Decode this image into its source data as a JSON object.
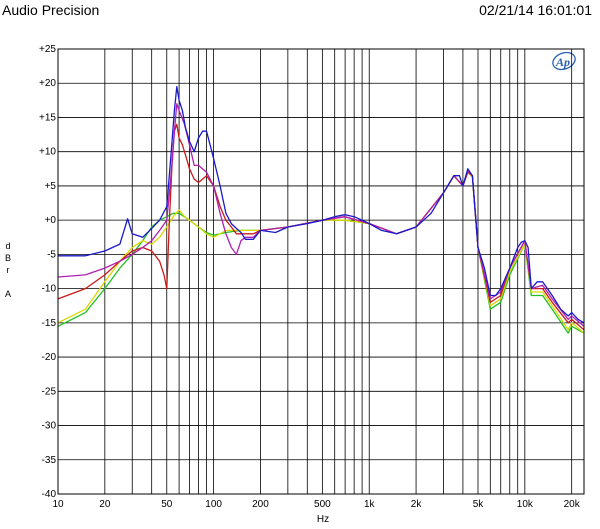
{
  "header": {
    "title": "Audio Precision",
    "timestamp": "02/21/14 16:01:01"
  },
  "logo": {
    "text": "Ap"
  },
  "chart_data": {
    "type": "line",
    "x_scale": "log",
    "y_scale": "linear",
    "xlim": [
      10,
      24000
    ],
    "ylim": [
      -40,
      25
    ],
    "grid": true,
    "legend": "none",
    "xlabel": "Hz",
    "ylabel": [
      "d",
      "B",
      "r",
      "",
      "A"
    ],
    "y_ticks": [
      {
        "v": 25,
        "label": "+25"
      },
      {
        "v": 20,
        "label": "+20"
      },
      {
        "v": 15,
        "label": "+15"
      },
      {
        "v": 10,
        "label": "+10"
      },
      {
        "v": 5,
        "label": "+5"
      },
      {
        "v": 0,
        "label": "+0"
      },
      {
        "v": -5,
        "label": "-5"
      },
      {
        "v": -10,
        "label": "-10"
      },
      {
        "v": -15,
        "label": "-15"
      },
      {
        "v": -20,
        "label": "-20"
      },
      {
        "v": -25,
        "label": "-25"
      },
      {
        "v": -30,
        "label": "-30"
      },
      {
        "v": -35,
        "label": "-35"
      },
      {
        "v": -40,
        "label": "-40"
      }
    ],
    "x_ticks": [
      {
        "v": 10,
        "label": "10"
      },
      {
        "v": 20,
        "label": "20"
      },
      {
        "v": 50,
        "label": "50"
      },
      {
        "v": 100,
        "label": "100"
      },
      {
        "v": 200,
        "label": "200"
      },
      {
        "v": 500,
        "label": "500"
      },
      {
        "v": 1000,
        "label": "1k"
      },
      {
        "v": 2000,
        "label": "2k"
      },
      {
        "v": 5000,
        "label": "5k"
      },
      {
        "v": 10000,
        "label": "10k"
      },
      {
        "v": 20000,
        "label": "20k"
      }
    ],
    "series": [
      {
        "color": "#1a1acc",
        "points": [
          [
            10,
            -5.2
          ],
          [
            15,
            -5.2
          ],
          [
            20,
            -4.5
          ],
          [
            25,
            -3.5
          ],
          [
            28,
            0.2
          ],
          [
            30,
            -2
          ],
          [
            35,
            -2.5
          ],
          [
            40,
            -1.2
          ],
          [
            45,
            0
          ],
          [
            50,
            2
          ],
          [
            53,
            9
          ],
          [
            56,
            16
          ],
          [
            58,
            19.5
          ],
          [
            60,
            17.5
          ],
          [
            63,
            16
          ],
          [
            66,
            13.5
          ],
          [
            70,
            11.5
          ],
          [
            75,
            10
          ],
          [
            80,
            12
          ],
          [
            85,
            13
          ],
          [
            90,
            13
          ],
          [
            95,
            11
          ],
          [
            100,
            9
          ],
          [
            110,
            5
          ],
          [
            120,
            1
          ],
          [
            130,
            -0.5
          ],
          [
            140,
            -1.2
          ],
          [
            150,
            -1.8
          ],
          [
            160,
            -2.8
          ],
          [
            180,
            -2.8
          ],
          [
            200,
            -1.5
          ],
          [
            250,
            -1.8
          ],
          [
            300,
            -1
          ],
          [
            400,
            -0.5
          ],
          [
            500,
            0
          ],
          [
            600,
            0.5
          ],
          [
            700,
            0.8
          ],
          [
            800,
            0.5
          ],
          [
            900,
            0
          ],
          [
            1000,
            -0.5
          ],
          [
            1200,
            -1.5
          ],
          [
            1500,
            -2
          ],
          [
            2000,
            -1
          ],
          [
            2500,
            1
          ],
          [
            3000,
            4
          ],
          [
            3500,
            6.5
          ],
          [
            3800,
            6.5
          ],
          [
            4000,
            5
          ],
          [
            4300,
            7.5
          ],
          [
            4600,
            6.5
          ],
          [
            5000,
            -4
          ],
          [
            5500,
            -7
          ],
          [
            6000,
            -11
          ],
          [
            6500,
            -11
          ],
          [
            7000,
            -10
          ],
          [
            8000,
            -7
          ],
          [
            9000,
            -4
          ],
          [
            9500,
            -3.2
          ],
          [
            10000,
            -3
          ],
          [
            10500,
            -4
          ],
          [
            11000,
            -10
          ],
          [
            12000,
            -9
          ],
          [
            13000,
            -9
          ],
          [
            15000,
            -11
          ],
          [
            17000,
            -13
          ],
          [
            19000,
            -14
          ],
          [
            20000,
            -13.5
          ],
          [
            22000,
            -14.5
          ],
          [
            24000,
            -15
          ]
        ]
      },
      {
        "color": "#b020b0",
        "points": [
          [
            10,
            -8.3
          ],
          [
            15,
            -8
          ],
          [
            20,
            -7
          ],
          [
            25,
            -6
          ],
          [
            30,
            -5
          ],
          [
            35,
            -4
          ],
          [
            40,
            -3
          ],
          [
            45,
            -1.5
          ],
          [
            50,
            0
          ],
          [
            53,
            6
          ],
          [
            56,
            13
          ],
          [
            58,
            17
          ],
          [
            60,
            16
          ],
          [
            65,
            14
          ],
          [
            70,
            11
          ],
          [
            75,
            8
          ],
          [
            80,
            8
          ],
          [
            90,
            7
          ],
          [
            100,
            5
          ],
          [
            110,
            1
          ],
          [
            120,
            -2
          ],
          [
            130,
            -4
          ],
          [
            140,
            -5
          ],
          [
            150,
            -3
          ],
          [
            160,
            -2.5
          ],
          [
            180,
            -2.5
          ],
          [
            200,
            -1.5
          ],
          [
            300,
            -1
          ],
          [
            500,
            0
          ],
          [
            700,
            0.5
          ],
          [
            1000,
            -0.5
          ],
          [
            1500,
            -2
          ],
          [
            2000,
            -1
          ],
          [
            3000,
            4
          ],
          [
            3500,
            6.5
          ],
          [
            4000,
            5
          ],
          [
            4300,
            7.2
          ],
          [
            4600,
            6.5
          ],
          [
            5000,
            -4
          ],
          [
            6000,
            -11.5
          ],
          [
            7000,
            -10.5
          ],
          [
            8000,
            -7
          ],
          [
            10000,
            -3
          ],
          [
            11000,
            -10
          ],
          [
            13000,
            -9.5
          ],
          [
            15000,
            -11.5
          ],
          [
            19000,
            -14.5
          ],
          [
            20000,
            -14
          ],
          [
            24000,
            -15.5
          ]
        ]
      },
      {
        "color": "#cc1a1a",
        "points": [
          [
            10,
            -11.5
          ],
          [
            15,
            -10
          ],
          [
            20,
            -8
          ],
          [
            25,
            -6
          ],
          [
            30,
            -4.5
          ],
          [
            35,
            -4
          ],
          [
            40,
            -4.5
          ],
          [
            45,
            -6
          ],
          [
            48,
            -8
          ],
          [
            50,
            -10
          ],
          [
            52,
            0
          ],
          [
            54,
            8
          ],
          [
            56,
            13
          ],
          [
            58,
            14
          ],
          [
            60,
            12
          ],
          [
            63,
            11
          ],
          [
            66,
            9.5
          ],
          [
            70,
            7.5
          ],
          [
            75,
            6
          ],
          [
            80,
            5.5
          ],
          [
            85,
            6
          ],
          [
            90,
            6.5
          ],
          [
            100,
            5
          ],
          [
            110,
            2
          ],
          [
            120,
            0
          ],
          [
            130,
            -1
          ],
          [
            140,
            -2
          ],
          [
            150,
            -2
          ],
          [
            180,
            -2
          ],
          [
            200,
            -1.5
          ],
          [
            300,
            -1
          ],
          [
            500,
            0
          ],
          [
            700,
            0.5
          ],
          [
            1000,
            -0.5
          ],
          [
            1500,
            -2
          ],
          [
            2000,
            -1
          ],
          [
            3000,
            4
          ],
          [
            3500,
            6.5
          ],
          [
            4000,
            5
          ],
          [
            4300,
            7
          ],
          [
            4600,
            6.5
          ],
          [
            5000,
            -4
          ],
          [
            6000,
            -12
          ],
          [
            7000,
            -11
          ],
          [
            8000,
            -7
          ],
          [
            10000,
            -3
          ],
          [
            11000,
            -10
          ],
          [
            13000,
            -10
          ],
          [
            15000,
            -12
          ],
          [
            19000,
            -15
          ],
          [
            20000,
            -14.5
          ],
          [
            24000,
            -16
          ]
        ]
      },
      {
        "color": "#d8d800",
        "points": [
          [
            10,
            -15
          ],
          [
            15,
            -13
          ],
          [
            20,
            -9
          ],
          [
            25,
            -6
          ],
          [
            30,
            -4
          ],
          [
            35,
            -3
          ],
          [
            40,
            -3.5
          ],
          [
            45,
            -2.5
          ],
          [
            50,
            -1
          ],
          [
            55,
            0.5
          ],
          [
            60,
            1.5
          ],
          [
            65,
            0.5
          ],
          [
            70,
            0
          ],
          [
            80,
            -1
          ],
          [
            90,
            -2
          ],
          [
            100,
            -2.5
          ],
          [
            110,
            -2
          ],
          [
            120,
            -1.5
          ],
          [
            150,
            -1.5
          ],
          [
            200,
            -1.5
          ],
          [
            300,
            -1
          ],
          [
            500,
            0
          ],
          [
            700,
            0
          ],
          [
            1000,
            -0.5
          ],
          [
            1500,
            -2
          ],
          [
            2000,
            -1
          ],
          [
            3000,
            4
          ],
          [
            3500,
            6.5
          ],
          [
            4000,
            5
          ],
          [
            4300,
            7
          ],
          [
            4600,
            6.3
          ],
          [
            5000,
            -4
          ],
          [
            6000,
            -12.5
          ],
          [
            7000,
            -11.5
          ],
          [
            8000,
            -7.5
          ],
          [
            10000,
            -3.5
          ],
          [
            11000,
            -10.5
          ],
          [
            13000,
            -10.5
          ],
          [
            15000,
            -12.5
          ],
          [
            19000,
            -16
          ],
          [
            20000,
            -15
          ],
          [
            24000,
            -16.5
          ]
        ]
      },
      {
        "color": "#20c020",
        "points": [
          [
            10,
            -15.5
          ],
          [
            15,
            -13.5
          ],
          [
            20,
            -10
          ],
          [
            25,
            -7
          ],
          [
            30,
            -5
          ],
          [
            35,
            -3
          ],
          [
            40,
            -1
          ],
          [
            45,
            0
          ],
          [
            50,
            0.5
          ],
          [
            55,
            1
          ],
          [
            60,
            1
          ],
          [
            70,
            0
          ],
          [
            80,
            -1
          ],
          [
            90,
            -1.8
          ],
          [
            100,
            -2.2
          ],
          [
            120,
            -1.8
          ],
          [
            150,
            -1.5
          ],
          [
            200,
            -1.5
          ],
          [
            300,
            -1
          ],
          [
            500,
            0
          ],
          [
            700,
            0
          ],
          [
            1000,
            -0.5
          ],
          [
            1500,
            -2
          ],
          [
            2000,
            -1
          ],
          [
            3000,
            4
          ],
          [
            3500,
            6.5
          ],
          [
            4000,
            5
          ],
          [
            4300,
            7
          ],
          [
            4600,
            6.3
          ],
          [
            5000,
            -4
          ],
          [
            6000,
            -13
          ],
          [
            7000,
            -12
          ],
          [
            8000,
            -8
          ],
          [
            10000,
            -3.5
          ],
          [
            11000,
            -11
          ],
          [
            13000,
            -11
          ],
          [
            15000,
            -13
          ],
          [
            19000,
            -16.5
          ],
          [
            20000,
            -15.5
          ],
          [
            24000,
            -16.5
          ]
        ]
      }
    ]
  }
}
